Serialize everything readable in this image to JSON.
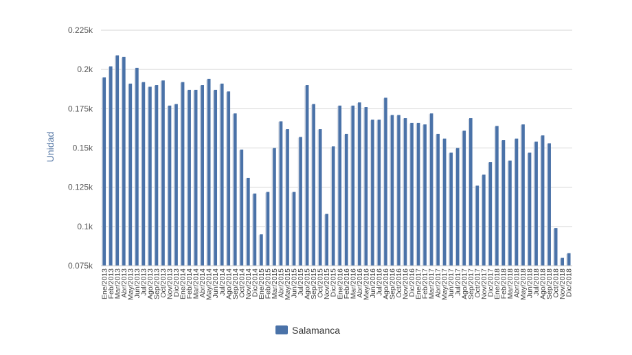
{
  "chart_data": {
    "type": "bar",
    "ylabel": "Unidad",
    "ylim": [
      0.075,
      0.225
    ],
    "yticks": [
      0.075,
      0.1,
      0.125,
      0.15,
      0.175,
      0.2,
      0.225
    ],
    "ytick_labels": [
      "0.075k",
      "0.1k",
      "0.125k",
      "0.15k",
      "0.175k",
      "0.2k",
      "0.225k"
    ],
    "grid": "horizontal",
    "legend": "bottom-center",
    "categories": [
      "Ene/2013",
      "Feb/2013",
      "Mar/2013",
      "Abr/2013",
      "May/2013",
      "Jun/2013",
      "Jul/2013",
      "Ago/2013",
      "Sep/2013",
      "Oct/2013",
      "Nov/2013",
      "Dic/2013",
      "Ene/2014",
      "Feb/2014",
      "Mar/2014",
      "Abr/2014",
      "May/2014",
      "Jun/2014",
      "Jul/2014",
      "Ago/2014",
      "Sep/2014",
      "Oct/2014",
      "Nov/2014",
      "Dic/2014",
      "Ene/2015",
      "Feb/2015",
      "Mar/2015",
      "Abr/2015",
      "May/2015",
      "Jun/2015",
      "Jul/2015",
      "Ago/2015",
      "Sep/2015",
      "Oct/2015",
      "Nov/2015",
      "Dic/2015",
      "Ene/2016",
      "Feb/2016",
      "Mar/2016",
      "Abr/2016",
      "May/2016",
      "Jun/2016",
      "Jul/2016",
      "Ago/2016",
      "Sep/2016",
      "Oct/2016",
      "Nov/2016",
      "Dic/2016",
      "Ene/2017",
      "Feb/2017",
      "Mar/2017",
      "Abr/2017",
      "May/2017",
      "Jun/2017",
      "Jul/2017",
      "Ago/2017",
      "Sep/2017",
      "Oct/2017",
      "Nov/2017",
      "Dic/2017",
      "Ene/2018",
      "Feb/2018",
      "Mar/2018",
      "Abr/2018",
      "May/2018",
      "Jun/2018",
      "Jul/2018",
      "Ago/2018",
      "Sep/2018",
      "Oct/2018",
      "Nov/2018",
      "Dic/2018"
    ],
    "series": [
      {
        "name": "Salamanca",
        "color": "#4a72a8",
        "values": [
          0.195,
          0.202,
          0.209,
          0.208,
          0.191,
          0.201,
          0.192,
          0.189,
          0.19,
          0.193,
          0.177,
          0.178,
          0.192,
          0.187,
          0.187,
          0.19,
          0.194,
          0.187,
          0.191,
          0.186,
          0.172,
          0.149,
          0.131,
          0.121,
          0.095,
          0.122,
          0.15,
          0.167,
          0.162,
          0.122,
          0.157,
          0.19,
          0.178,
          0.162,
          0.108,
          0.151,
          0.177,
          0.159,
          0.177,
          0.179,
          0.176,
          0.168,
          0.168,
          0.182,
          0.171,
          0.171,
          0.169,
          0.166,
          0.166,
          0.165,
          0.172,
          0.159,
          0.156,
          0.147,
          0.15,
          0.161,
          0.169,
          0.126,
          0.133,
          0.141,
          0.164,
          0.155,
          0.142,
          0.156,
          0.165,
          0.147,
          0.154,
          0.158,
          0.153,
          0.099,
          0.08,
          0.083
        ]
      }
    ]
  }
}
